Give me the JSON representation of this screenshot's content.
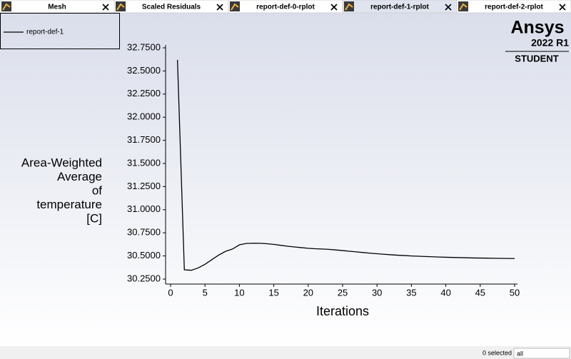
{
  "tabs": [
    "Mesh",
    "Scaled Residuals",
    "report-def-0-rplot",
    "report-def-1-rplot",
    "report-def-2-rplot"
  ],
  "active_tab": 3,
  "logo": {
    "brand": "Ansys",
    "version": "2022 R1",
    "edition": "STUDENT"
  },
  "status": {
    "selection": "0 selected",
    "filter": "all"
  },
  "chart_data": {
    "type": "line",
    "xlabel": "Iterations",
    "ylabel_lines": [
      "Area-Weighted",
      "Average",
      "of",
      "temperature",
      "[C]"
    ],
    "x": [
      1,
      2,
      3,
      4,
      5,
      6,
      7,
      8,
      9,
      10,
      11,
      12,
      13,
      14,
      15,
      16,
      17,
      18,
      19,
      20,
      21,
      22,
      23,
      24,
      25,
      26,
      27,
      28,
      29,
      30,
      31,
      32,
      33,
      34,
      35,
      36,
      37,
      38,
      39,
      40,
      41,
      42,
      43,
      44,
      45,
      46,
      47,
      48,
      49,
      50
    ],
    "series": [
      {
        "name": "report-def-1",
        "color": "#000000",
        "values": [
          32.62,
          30.35,
          30.345,
          30.37,
          30.41,
          30.46,
          30.51,
          30.55,
          30.575,
          30.62,
          30.635,
          30.638,
          30.637,
          30.632,
          30.625,
          30.615,
          30.605,
          30.597,
          30.59,
          30.583,
          30.578,
          30.575,
          30.571,
          30.565,
          30.558,
          30.551,
          30.544,
          30.537,
          30.53,
          30.524,
          30.518,
          30.513,
          30.508,
          30.504,
          30.5,
          30.497,
          30.494,
          30.491,
          30.488,
          30.486,
          30.484,
          30.482,
          30.48,
          30.478,
          30.477,
          30.476,
          30.475,
          30.474,
          30.473,
          30.472
        ]
      }
    ],
    "xlim": [
      0,
      50
    ],
    "ylim": [
      30.25,
      32.75
    ],
    "xticks": [
      0,
      5,
      10,
      15,
      20,
      25,
      30,
      35,
      40,
      45,
      50
    ],
    "yticks": [
      {
        "value": 30.25,
        "label": "30.2500"
      },
      {
        "value": 30.5,
        "label": "30.5000"
      },
      {
        "value": 30.75,
        "label": "30.7500"
      },
      {
        "value": 31,
        "label": "31.0000"
      },
      {
        "value": 31.25,
        "label": "31.2500"
      },
      {
        "value": 31.5,
        "label": "31.5000"
      },
      {
        "value": 31.75,
        "label": "31.7500"
      },
      {
        "value": 32,
        "label": "32.0000"
      },
      {
        "value": 32.25,
        "label": "32.2500"
      },
      {
        "value": 32.5,
        "label": "32.5000"
      },
      {
        "value": 32.75,
        "label": "32.7500"
      }
    ],
    "legend": "top-left",
    "grid": false
  }
}
